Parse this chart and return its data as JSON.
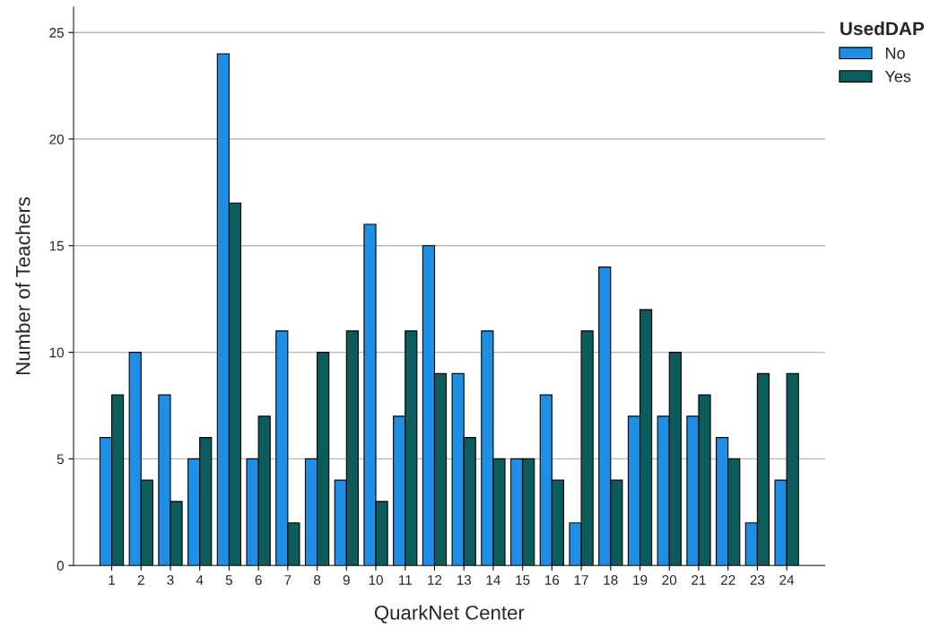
{
  "chart_data": {
    "type": "bar",
    "xlabel": "QuarkNet Center",
    "ylabel": "Number of Teachers",
    "legend_title": "UsedDAP",
    "categories": [
      "1",
      "2",
      "3",
      "4",
      "5",
      "6",
      "7",
      "8",
      "9",
      "10",
      "11",
      "12",
      "13",
      "14",
      "15",
      "16",
      "17",
      "18",
      "19",
      "20",
      "21",
      "22",
      "23",
      "24"
    ],
    "series": [
      {
        "name": "No",
        "color": "#1f8fe6",
        "values": [
          6,
          10,
          8,
          5,
          24,
          5,
          11,
          5,
          4,
          16,
          7,
          15,
          9,
          11,
          5,
          8,
          2,
          14,
          7,
          7,
          7,
          6,
          2,
          4
        ]
      },
      {
        "name": "Yes",
        "color": "#0b5c5a",
        "values": [
          8,
          4,
          3,
          6,
          17,
          7,
          2,
          10,
          11,
          3,
          11,
          9,
          6,
          5,
          5,
          4,
          11,
          4,
          12,
          10,
          8,
          5,
          9,
          9
        ]
      }
    ],
    "ylim": [
      0,
      26.2
    ],
    "yticks": [
      0,
      5,
      10,
      15,
      20,
      25
    ],
    "grid": "y",
    "legend": "top right"
  }
}
